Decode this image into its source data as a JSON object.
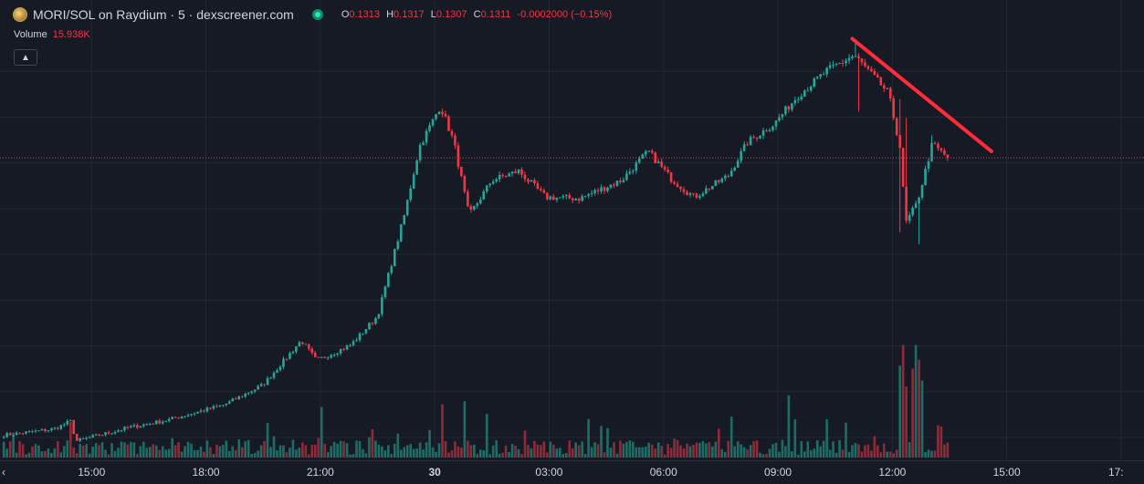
{
  "header": {
    "title": "MORI/SOL on Raydium · 5 · dexscreener.com",
    "ohlc": [
      {
        "k": "O",
        "v": "0.1313"
      },
      {
        "k": "H",
        "v": "0.1317"
      },
      {
        "k": "L",
        "v": "0.1307"
      },
      {
        "k": "C",
        "v": "0.1311"
      }
    ],
    "change": "-0.0002000 (−0.15%)",
    "volume_label": "Volume",
    "volume_value": "15.938K",
    "collapse_icon": "chevron-up-icon"
  },
  "colors": {
    "background": "#161a25",
    "grid": "#242833",
    "up": "#26a69a",
    "down": "#f23645",
    "vol_up": "#1d6d66",
    "vol_down": "#8d2c39",
    "trendline": "#ff2b3a",
    "price_line": "#f23645"
  },
  "chart_data": {
    "type": "candlestick",
    "interval": "5",
    "x_ticks": [
      "15:00",
      "18:00",
      "21:00",
      "30",
      "03:00",
      "06:00",
      "09:00",
      "12:00",
      "15:00",
      "17:"
    ],
    "x_ticks_hours": [
      15,
      18,
      21,
      24,
      27,
      30,
      33,
      36,
      39,
      42
    ],
    "x_range_hours": [
      12.6,
      42.6
    ],
    "last_time_hours": 37.45,
    "current_price": 0.1311,
    "y_range": [
      0.065,
      0.158
    ],
    "volume_ylim": [
      0,
      40
    ],
    "key_points": [
      {
        "t": 12.7,
        "p": 0.0705
      },
      {
        "t": 14.0,
        "p": 0.0718
      },
      {
        "t": 14.45,
        "p": 0.0735
      },
      {
        "t": 14.6,
        "p": 0.0692
      },
      {
        "t": 16.0,
        "p": 0.0722
      },
      {
        "t": 17.0,
        "p": 0.0738
      },
      {
        "t": 18.5,
        "p": 0.0772
      },
      {
        "t": 19.5,
        "p": 0.0815
      },
      {
        "t": 20.5,
        "p": 0.0912
      },
      {
        "t": 20.9,
        "p": 0.0868
      },
      {
        "t": 21.8,
        "p": 0.0902
      },
      {
        "t": 22.5,
        "p": 0.0965
      },
      {
        "t": 23.2,
        "p": 0.1185
      },
      {
        "t": 23.6,
        "p": 0.1335
      },
      {
        "t": 24.15,
        "p": 0.1425
      },
      {
        "t": 24.5,
        "p": 0.1345
      },
      {
        "t": 24.9,
        "p": 0.1185
      },
      {
        "t": 25.5,
        "p": 0.1262
      },
      {
        "t": 26.2,
        "p": 0.1282
      },
      {
        "t": 26.9,
        "p": 0.1225
      },
      {
        "t": 27.8,
        "p": 0.1222
      },
      {
        "t": 28.9,
        "p": 0.1262
      },
      {
        "t": 29.6,
        "p": 0.1325
      },
      {
        "t": 30.2,
        "p": 0.1265
      },
      {
        "t": 30.8,
        "p": 0.1225
      },
      {
        "t": 31.7,
        "p": 0.1272
      },
      {
        "t": 32.2,
        "p": 0.1345
      },
      {
        "t": 32.9,
        "p": 0.1385
      },
      {
        "t": 33.5,
        "p": 0.1445
      },
      {
        "t": 34.3,
        "p": 0.1502
      },
      {
        "t": 35.0,
        "p": 0.1535
      },
      {
        "t": 35.9,
        "p": 0.1452
      },
      {
        "t": 36.2,
        "p": 0.1335
      },
      {
        "t": 36.35,
        "p": 0.1168
      },
      {
        "t": 36.65,
        "p": 0.1212
      },
      {
        "t": 37.05,
        "p": 0.1342
      },
      {
        "t": 37.3,
        "p": 0.1322
      },
      {
        "t": 37.45,
        "p": 0.1311
      }
    ],
    "price_spikes": [
      {
        "t": 35.0,
        "high": 0.1561
      },
      {
        "t": 35.1,
        "low": 0.1412
      },
      {
        "t": 36.2,
        "high": 0.1439
      },
      {
        "t": 36.2,
        "low": 0.1148
      },
      {
        "t": 36.35,
        "high": 0.1398
      },
      {
        "t": 36.7,
        "low": 0.1122
      },
      {
        "t": 37.05,
        "high": 0.136
      }
    ],
    "volume_spikes": [
      {
        "t": 36.2,
        "v": 31,
        "dir": "up"
      },
      {
        "t": 36.3,
        "v": 38,
        "dir": "down"
      },
      {
        "t": 36.4,
        "v": 24,
        "dir": "down"
      },
      {
        "t": 36.5,
        "v": 30,
        "dir": "down"
      },
      {
        "t": 36.6,
        "v": 38,
        "dir": "up"
      },
      {
        "t": 36.7,
        "v": 33,
        "dir": "down"
      },
      {
        "t": 36.8,
        "v": 26,
        "dir": "up"
      },
      {
        "t": 33.3,
        "v": 21,
        "dir": "up"
      },
      {
        "t": 24.2,
        "v": 18,
        "dir": "down"
      },
      {
        "t": 24.8,
        "v": 19,
        "dir": "up"
      },
      {
        "t": 21.0,
        "v": 17,
        "dir": "up"
      },
      {
        "t": 14.45,
        "v": 12,
        "dir": "down"
      }
    ],
    "trendline": {
      "t1": 34.95,
      "p1": 0.1571,
      "t2": 38.6,
      "p2": 0.1325
    }
  }
}
